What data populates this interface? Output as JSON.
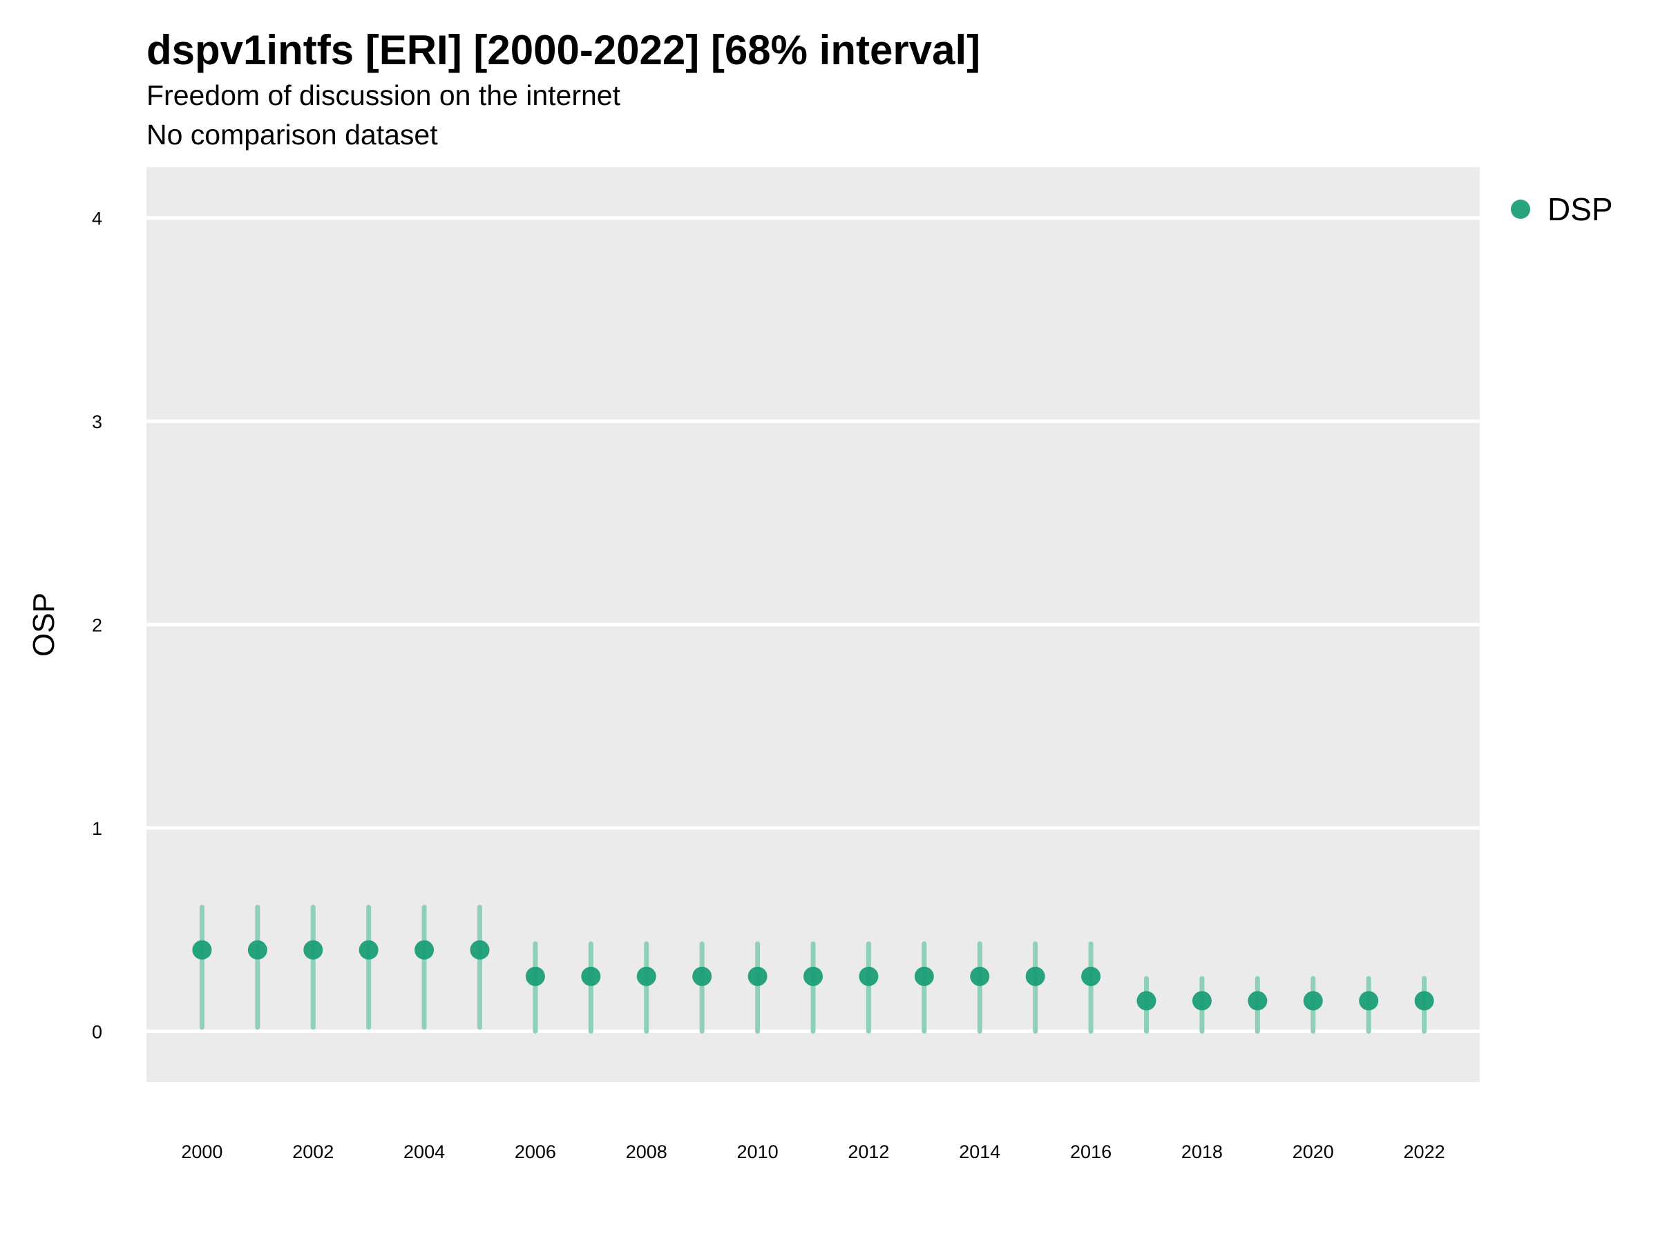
{
  "header": {
    "title": "dspv1intfs [ERI] [2000-2022] [68% interval]",
    "subtitle": "Freedom of discussion on the internet",
    "subtitle2": "No comparison dataset"
  },
  "chart_data": {
    "type": "scatter",
    "title": "dspv1intfs [ERI] [2000-2022] [68% interval]",
    "subtitle": [
      "Freedom of discussion on the internet",
      "No comparison dataset"
    ],
    "xlabel": "",
    "ylabel": "OSP",
    "xlim": [
      1999,
      2023
    ],
    "ylim": [
      -0.25,
      4.25
    ],
    "x_ticks": [
      2000,
      2002,
      2004,
      2006,
      2008,
      2010,
      2012,
      2014,
      2016,
      2018,
      2020,
      2022
    ],
    "y_ticks": [
      0,
      1,
      2,
      3,
      4
    ],
    "grid": true,
    "legend_position": "top-right",
    "colors": {
      "point": "#1b9e77",
      "interval": "#8fd0b9",
      "panel": "#ebebeb",
      "grid": "#ffffff"
    },
    "series": [
      {
        "name": "DSP",
        "x": [
          2000,
          2001,
          2002,
          2003,
          2004,
          2005,
          2006,
          2007,
          2008,
          2009,
          2010,
          2011,
          2012,
          2013,
          2014,
          2015,
          2016,
          2017,
          2018,
          2019,
          2020,
          2021,
          2022
        ],
        "y": [
          0.4,
          0.4,
          0.4,
          0.4,
          0.4,
          0.4,
          0.27,
          0.27,
          0.27,
          0.27,
          0.27,
          0.27,
          0.27,
          0.27,
          0.27,
          0.27,
          0.27,
          0.15,
          0.15,
          0.15,
          0.15,
          0.15,
          0.15
        ],
        "lower": [
          0.02,
          0.02,
          0.02,
          0.02,
          0.02,
          0.02,
          0.0,
          0.0,
          0.0,
          0.0,
          0.0,
          0.0,
          0.0,
          0.0,
          0.0,
          0.0,
          0.0,
          0.0,
          0.0,
          0.0,
          0.0,
          0.0,
          0.0
        ],
        "upper": [
          0.61,
          0.61,
          0.61,
          0.61,
          0.61,
          0.61,
          0.43,
          0.43,
          0.43,
          0.43,
          0.43,
          0.43,
          0.43,
          0.43,
          0.43,
          0.43,
          0.43,
          0.26,
          0.26,
          0.26,
          0.26,
          0.26,
          0.26
        ]
      }
    ]
  }
}
